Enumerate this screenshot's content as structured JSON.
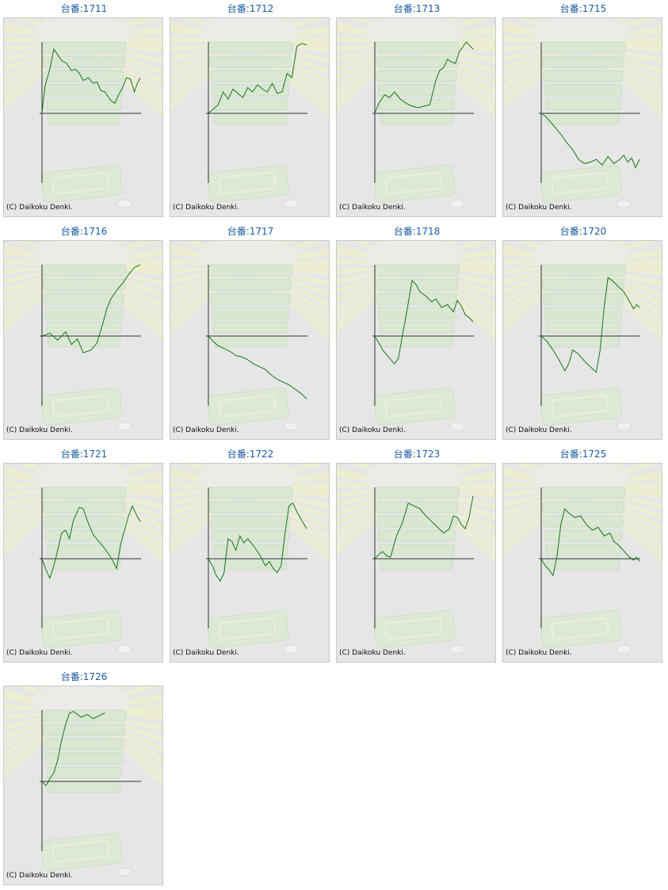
{
  "credit": "(C) Daikoku Denki.",
  "colors": {
    "line": "#127a12",
    "axis": "#333333",
    "title": "#1a5ca0"
  },
  "cells": [
    {
      "title": "台番:1711"
    },
    {
      "title": "台番:1712"
    },
    {
      "title": "台番:1713"
    },
    {
      "title": "台番:1715"
    },
    {
      "title": "台番:1716"
    },
    {
      "title": "台番:1717"
    },
    {
      "title": "台番:1718"
    },
    {
      "title": "台番:1720"
    },
    {
      "title": "台番:1721"
    },
    {
      "title": "台番:1722"
    },
    {
      "title": "台番:1723"
    },
    {
      "title": "台番:1725"
    },
    {
      "title": "台番:1726"
    }
  ],
  "chart_data": [
    {
      "type": "line",
      "x": [
        0,
        0.03,
        0.08,
        0.12,
        0.16,
        0.2,
        0.25,
        0.3,
        0.34,
        0.38,
        0.42,
        0.47,
        0.52,
        0.56,
        0.6,
        0.64,
        0.7,
        0.74,
        0.78,
        0.82,
        0.86,
        0.9,
        0.94,
        0.97,
        1
      ],
      "y": [
        0,
        0.38,
        0.62,
        0.9,
        0.82,
        0.74,
        0.7,
        0.6,
        0.62,
        0.56,
        0.46,
        0.5,
        0.42,
        0.44,
        0.32,
        0.3,
        0.18,
        0.14,
        0.26,
        0.36,
        0.5,
        0.48,
        0.3,
        0.42,
        0.5
      ]
    },
    {
      "type": "line",
      "x": [
        0,
        0.05,
        0.1,
        0.15,
        0.2,
        0.25,
        0.3,
        0.35,
        0.4,
        0.45,
        0.5,
        0.55,
        0.6,
        0.65,
        0.7,
        0.75,
        0.8,
        0.85,
        0.9,
        0.95,
        1
      ],
      "y": [
        0,
        0.06,
        0.12,
        0.3,
        0.2,
        0.34,
        0.28,
        0.22,
        0.36,
        0.3,
        0.4,
        0.34,
        0.3,
        0.42,
        0.28,
        0.3,
        0.56,
        0.5,
        0.94,
        0.98,
        0.96
      ]
    },
    {
      "type": "line",
      "x": [
        0,
        0.04,
        0.1,
        0.15,
        0.2,
        0.26,
        0.32,
        0.38,
        0.44,
        0.5,
        0.56,
        0.62,
        0.66,
        0.7,
        0.74,
        0.78,
        0.82,
        0.86,
        0.9,
        0.93,
        0.96,
        1
      ],
      "y": [
        0,
        0.14,
        0.26,
        0.22,
        0.3,
        0.2,
        0.14,
        0.1,
        0.08,
        0.1,
        0.12,
        0.46,
        0.6,
        0.64,
        0.76,
        0.72,
        0.7,
        0.86,
        0.94,
        1.0,
        0.96,
        0.9
      ]
    },
    {
      "type": "line",
      "x": [
        0,
        0.04,
        0.08,
        0.14,
        0.2,
        0.26,
        0.32,
        0.38,
        0.44,
        0.5,
        0.56,
        0.62,
        0.68,
        0.74,
        0.8,
        0.84,
        0.88,
        0.92,
        0.96,
        1
      ],
      "y": [
        0,
        -0.04,
        -0.1,
        -0.2,
        -0.3,
        -0.42,
        -0.52,
        -0.66,
        -0.72,
        -0.7,
        -0.66,
        -0.74,
        -0.62,
        -0.72,
        -0.66,
        -0.6,
        -0.7,
        -0.64,
        -0.78,
        -0.66
      ]
    },
    {
      "type": "line",
      "x": [
        0,
        0.08,
        0.16,
        0.24,
        0.3,
        0.36,
        0.42,
        0.5,
        0.56,
        0.62,
        0.66,
        0.7,
        0.76,
        0.82,
        0.88,
        0.94,
        1
      ],
      "y": [
        0,
        0.04,
        -0.06,
        0.06,
        -0.12,
        -0.04,
        -0.24,
        -0.2,
        -0.1,
        0.18,
        0.38,
        0.52,
        0.64,
        0.74,
        0.86,
        0.96,
        1.0
      ]
    },
    {
      "type": "line",
      "x": [
        0,
        0.05,
        0.1,
        0.16,
        0.22,
        0.28,
        0.34,
        0.4,
        0.46,
        0.52,
        0.58,
        0.64,
        0.7,
        0.76,
        0.82,
        0.88,
        0.94,
        1
      ],
      "y": [
        0,
        -0.08,
        -0.14,
        -0.18,
        -0.22,
        -0.28,
        -0.3,
        -0.34,
        -0.4,
        -0.44,
        -0.48,
        -0.56,
        -0.62,
        -0.66,
        -0.7,
        -0.76,
        -0.82,
        -0.9
      ]
    },
    {
      "type": "line",
      "x": [
        0,
        0.04,
        0.08,
        0.14,
        0.2,
        0.24,
        0.28,
        0.32,
        0.38,
        0.42,
        0.46,
        0.52,
        0.58,
        0.62,
        0.68,
        0.74,
        0.8,
        0.84,
        0.88,
        0.92,
        0.96,
        1
      ],
      "y": [
        0,
        -0.1,
        -0.2,
        -0.3,
        -0.4,
        -0.32,
        0.0,
        0.3,
        0.78,
        0.72,
        0.62,
        0.56,
        0.48,
        0.52,
        0.4,
        0.44,
        0.34,
        0.5,
        0.42,
        0.3,
        0.26,
        0.2
      ]
    },
    {
      "type": "line",
      "x": [
        0,
        0.06,
        0.12,
        0.18,
        0.24,
        0.28,
        0.32,
        0.38,
        0.44,
        0.5,
        0.56,
        0.6,
        0.64,
        0.68,
        0.72,
        0.78,
        0.84,
        0.9,
        0.94,
        0.97,
        1
      ],
      "y": [
        0,
        -0.08,
        -0.2,
        -0.34,
        -0.5,
        -0.4,
        -0.2,
        -0.26,
        -0.36,
        -0.44,
        -0.52,
        -0.2,
        0.4,
        0.82,
        0.78,
        0.7,
        0.62,
        0.48,
        0.38,
        0.44,
        0.4
      ]
    },
    {
      "type": "line",
      "x": [
        0,
        0.04,
        0.08,
        0.12,
        0.16,
        0.2,
        0.24,
        0.28,
        0.32,
        0.38,
        0.42,
        0.46,
        0.52,
        0.58,
        0.64,
        0.7,
        0.76,
        0.8,
        0.84,
        0.88,
        0.92,
        0.96,
        1
      ],
      "y": [
        0,
        -0.16,
        -0.28,
        -0.1,
        0.12,
        0.36,
        0.4,
        0.28,
        0.54,
        0.72,
        0.7,
        0.54,
        0.34,
        0.24,
        0.14,
        0.02,
        -0.14,
        0.2,
        0.4,
        0.6,
        0.74,
        0.62,
        0.52
      ]
    },
    {
      "type": "line",
      "x": [
        0,
        0.04,
        0.08,
        0.12,
        0.16,
        0.2,
        0.24,
        0.28,
        0.32,
        0.36,
        0.4,
        0.46,
        0.52,
        0.58,
        0.62,
        0.66,
        0.7,
        0.74,
        0.78,
        0.82,
        0.86,
        0.9,
        0.94,
        1
      ],
      "y": [
        0,
        -0.1,
        -0.24,
        -0.32,
        -0.2,
        0.28,
        0.24,
        0.12,
        0.32,
        0.22,
        0.28,
        0.18,
        0.06,
        -0.1,
        -0.04,
        -0.14,
        -0.2,
        -0.1,
        0.36,
        0.74,
        0.78,
        0.66,
        0.56,
        0.42
      ]
    },
    {
      "type": "line",
      "x": [
        0,
        0.04,
        0.08,
        0.12,
        0.16,
        0.22,
        0.28,
        0.34,
        0.4,
        0.46,
        0.52,
        0.58,
        0.64,
        0.7,
        0.76,
        0.8,
        0.84,
        0.88,
        0.92,
        0.96,
        1
      ],
      "y": [
        0,
        0.06,
        0.1,
        0.04,
        0.02,
        0.32,
        0.5,
        0.78,
        0.74,
        0.7,
        0.6,
        0.52,
        0.44,
        0.36,
        0.42,
        0.6,
        0.58,
        0.48,
        0.42,
        0.58,
        0.88
      ]
    },
    {
      "type": "line",
      "x": [
        0,
        0.04,
        0.08,
        0.12,
        0.16,
        0.2,
        0.24,
        0.28,
        0.34,
        0.4,
        0.46,
        0.52,
        0.58,
        0.64,
        0.7,
        0.74,
        0.78,
        0.82,
        0.86,
        0.9,
        0.94,
        0.97,
        1
      ],
      "y": [
        0,
        -0.1,
        -0.16,
        -0.24,
        0.02,
        0.48,
        0.7,
        0.64,
        0.58,
        0.6,
        0.48,
        0.4,
        0.44,
        0.32,
        0.36,
        0.24,
        0.2,
        0.14,
        0.08,
        0.02,
        -0.02,
        0.02,
        -0.04
      ]
    },
    {
      "type": "line",
      "x": [
        0,
        0.04,
        0.08,
        0.12,
        0.16,
        0.2,
        0.24,
        0.28,
        0.32,
        0.36,
        0.4,
        0.46,
        0.52,
        0.58,
        0.64
      ],
      "y": [
        0,
        -0.06,
        0.04,
        0.12,
        0.3,
        0.58,
        0.8,
        0.96,
        0.98,
        0.94,
        0.9,
        0.94,
        0.88,
        0.92,
        0.96
      ]
    }
  ]
}
